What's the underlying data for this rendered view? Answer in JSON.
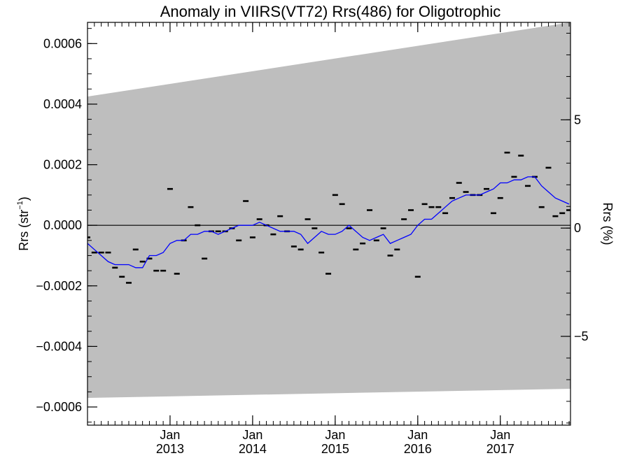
{
  "chart_data": {
    "type": "scatter",
    "title": "Anomaly in VIIRS(VT72) Rrs(486) for Oligotrophic",
    "ylabel_left": {
      "base": "Rrs (str",
      "superscript": "−1",
      "close": ")"
    },
    "ylabel_right": "Rrs (%)",
    "xlim": [
      2012.0,
      2017.85
    ],
    "ylim": [
      -0.00066,
      0.00067
    ],
    "ylim_right_percent": [
      -9.1,
      9.5
    ],
    "x_ticks": [
      {
        "value": 2013.0,
        "month": "Jan",
        "year": "2013"
      },
      {
        "value": 2014.0,
        "month": "Jan",
        "year": "2014"
      },
      {
        "value": 2015.0,
        "month": "Jan",
        "year": "2015"
      },
      {
        "value": 2016.0,
        "month": "Jan",
        "year": "2016"
      },
      {
        "value": 2017.0,
        "month": "Jan",
        "year": "2017"
      }
    ],
    "y_ticks_left": [
      {
        "value": 0.0006,
        "label": "0.0006"
      },
      {
        "value": 0.0004,
        "label": "0.0004"
      },
      {
        "value": 0.0002,
        "label": "0.0002"
      },
      {
        "value": 0.0,
        "label": "0.0000"
      },
      {
        "value": -0.0002,
        "label": "−0.0002"
      },
      {
        "value": -0.0004,
        "label": "−0.0004"
      },
      {
        "value": -0.0006,
        "label": "−0.0006"
      }
    ],
    "y_ticks_right": [
      {
        "value": 5,
        "label": "5"
      },
      {
        "value": 0,
        "label": "0"
      },
      {
        "value": -5,
        "label": "−5"
      }
    ],
    "uncertainty_band": {
      "x": [
        2012.0,
        2017.85
      ],
      "upper": [
        0.000425,
        0.00067
      ],
      "lower": [
        -0.00057,
        -0.00054
      ]
    },
    "zero_line": 0,
    "series": [
      {
        "kind": "points",
        "color": "#000000",
        "x": [
          2012.0,
          2012.083,
          2012.167,
          2012.25,
          2012.333,
          2012.417,
          2012.5,
          2012.583,
          2012.667,
          2012.75,
          2012.833,
          2012.917,
          2013.0,
          2013.083,
          2013.167,
          2013.25,
          2013.333,
          2013.417,
          2013.5,
          2013.583,
          2013.667,
          2013.75,
          2013.833,
          2013.917,
          2014.0,
          2014.083,
          2014.167,
          2014.25,
          2014.333,
          2014.417,
          2014.5,
          2014.583,
          2014.667,
          2014.75,
          2014.833,
          2014.917,
          2015.0,
          2015.083,
          2015.167,
          2015.25,
          2015.333,
          2015.417,
          2015.5,
          2015.583,
          2015.667,
          2015.75,
          2015.833,
          2015.917,
          2016.0,
          2016.083,
          2016.167,
          2016.25,
          2016.333,
          2016.417,
          2016.5,
          2016.583,
          2016.667,
          2016.75,
          2016.833,
          2016.917,
          2017.0,
          2017.083,
          2017.167,
          2017.25,
          2017.333,
          2017.417,
          2017.5,
          2017.583,
          2017.667,
          2017.75,
          2017.833
        ],
        "y": [
          -4e-05,
          -9e-05,
          -9e-05,
          -9e-05,
          -0.00014,
          -0.00017,
          -0.00019,
          -8e-05,
          -0.00012,
          -0.00011,
          -0.00015,
          -0.00015,
          0.00012,
          -0.00016,
          -5e-05,
          6e-05,
          0.0,
          -0.00011,
          -2e-05,
          -2e-05,
          -2e-05,
          -1e-05,
          -5e-05,
          8e-05,
          -4e-05,
          2e-05,
          0.0,
          -3e-05,
          3e-05,
          -2e-05,
          -7e-05,
          -8e-05,
          2e-05,
          -1e-05,
          -9e-05,
          -0.00016,
          0.0001,
          7e-05,
          -1e-05,
          -8e-05,
          -6e-05,
          5e-05,
          -5e-05,
          -1e-05,
          -0.0001,
          -8e-05,
          2e-05,
          5e-05,
          -0.00017,
          7e-05,
          6e-05,
          6e-05,
          4e-05,
          9e-05,
          0.00014,
          0.00011,
          0.0001,
          0.0001,
          0.00012,
          4e-05,
          9e-05,
          0.00024,
          0.00016,
          0.00023,
          0.00013,
          0.00016,
          6e-05,
          0.00019,
          3e-05,
          4e-05,
          5e-05
        ]
      },
      {
        "kind": "line",
        "color": "#0000ff",
        "x": [
          2012.0,
          2012.083,
          2012.167,
          2012.25,
          2012.333,
          2012.417,
          2012.5,
          2012.583,
          2012.667,
          2012.75,
          2012.833,
          2012.917,
          2013.0,
          2013.083,
          2013.167,
          2013.25,
          2013.333,
          2013.417,
          2013.5,
          2013.583,
          2013.667,
          2013.75,
          2013.833,
          2013.917,
          2014.0,
          2014.083,
          2014.167,
          2014.25,
          2014.333,
          2014.417,
          2014.5,
          2014.583,
          2014.667,
          2014.75,
          2014.833,
          2014.917,
          2015.0,
          2015.083,
          2015.167,
          2015.25,
          2015.333,
          2015.417,
          2015.5,
          2015.583,
          2015.667,
          2015.75,
          2015.833,
          2015.917,
          2016.0,
          2016.083,
          2016.167,
          2016.25,
          2016.333,
          2016.417,
          2016.5,
          2016.583,
          2016.667,
          2016.75,
          2016.833,
          2016.917,
          2017.0,
          2017.083,
          2017.167,
          2017.25,
          2017.333,
          2017.417,
          2017.5,
          2017.583,
          2017.667,
          2017.75,
          2017.833
        ],
        "y": [
          -6e-05,
          -8e-05,
          -0.0001,
          -0.00012,
          -0.00013,
          -0.00013,
          -0.00013,
          -0.00014,
          -0.00014,
          -0.0001,
          -0.0001,
          -9e-05,
          -6e-05,
          -5e-05,
          -5e-05,
          -3e-05,
          -3e-05,
          -2e-05,
          -2e-05,
          -3e-05,
          -2e-05,
          -1e-05,
          0.0,
          0.0,
          0.0,
          1e-05,
          0.0,
          -1e-05,
          -2e-05,
          -2e-05,
          -2e-05,
          -3e-05,
          -6e-05,
          -4e-05,
          -2e-05,
          -3e-05,
          -3e-05,
          -2e-05,
          0.0,
          -2e-05,
          -4e-05,
          -5e-05,
          -4e-05,
          -3e-05,
          -6e-05,
          -5e-05,
          -4e-05,
          -3e-05,
          0.0,
          2e-05,
          2e-05,
          4e-05,
          6e-05,
          8e-05,
          9e-05,
          0.0001,
          0.0001,
          0.0001,
          0.00011,
          0.00012,
          0.00014,
          0.00014,
          0.00015,
          0.00015,
          0.00016,
          0.00016,
          0.00013,
          0.00011,
          9e-05,
          8e-05,
          7e-05
        ]
      }
    ]
  }
}
